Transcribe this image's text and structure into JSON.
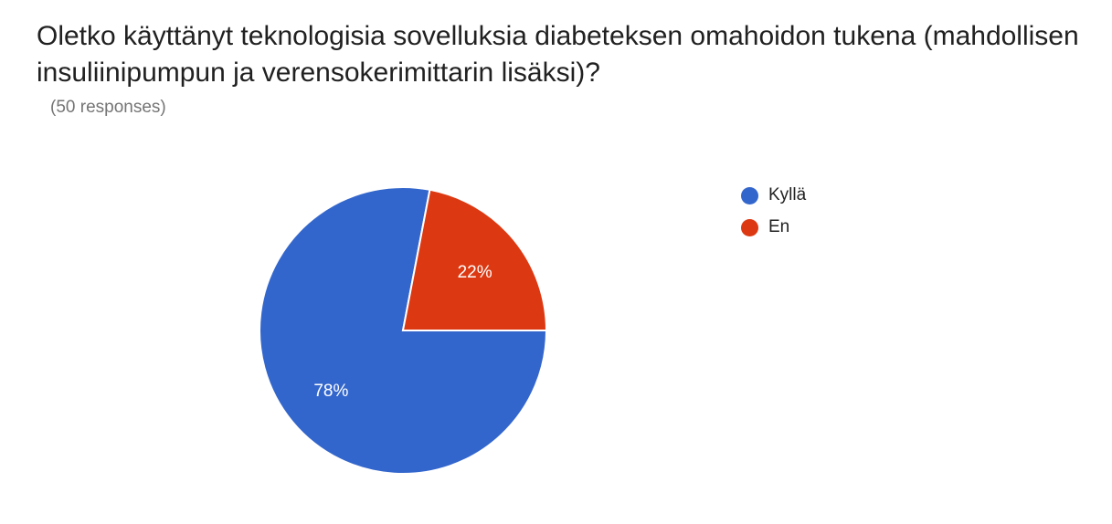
{
  "question": {
    "title": "Oletko käyttänyt teknologisia sovelluksia diabeteksen omahoidon tukena (mahdollisen insuliinipumpun ja verensokerimittarin lisäksi)?",
    "response_count": "(50 responses)"
  },
  "chart_data": {
    "type": "pie",
    "title": "Oletko käyttänyt teknologisia sovelluksia diabeteksen omahoidon tukena (mahdollisen insuliinipumpun ja verensokerimittarin lisäksi)?",
    "total_responses": 50,
    "slices": [
      {
        "name": "Kyllä",
        "value": 78,
        "label": "78%",
        "color": "#3366cc"
      },
      {
        "name": "En",
        "value": 22,
        "label": "22%",
        "color": "#dc3912"
      }
    ],
    "legend_position": "right"
  }
}
